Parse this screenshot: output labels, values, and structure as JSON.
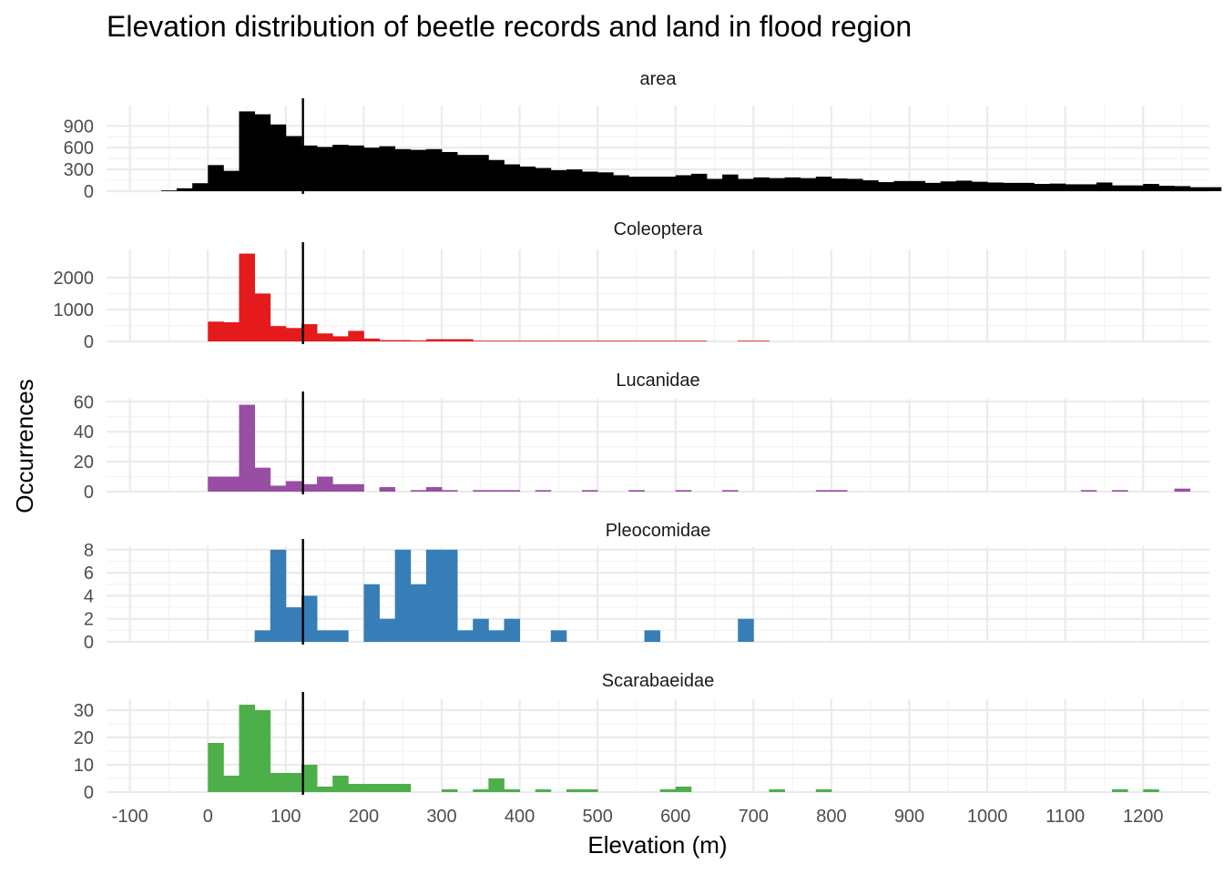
{
  "chart_data": {
    "type": "bar",
    "title": "Elevation distribution of beetle records and land in flood region",
    "xlabel": "Elevation (m)",
    "ylabel": "Occurrences",
    "xlim": [
      -130,
      1285
    ],
    "x_ticks": [
      -100,
      0,
      100,
      200,
      300,
      400,
      500,
      600,
      700,
      800,
      900,
      1000,
      1100,
      1200
    ],
    "x_tick_labels": [
      "-100",
      "0",
      "100",
      "200",
      "300",
      "400",
      "500",
      "600",
      "700",
      "800",
      "900",
      "1000",
      "1100",
      "1200"
    ],
    "bin_width": 20,
    "vline_x": 122,
    "vline_color": "#000000",
    "grid": true,
    "panels": [
      {
        "name": "area",
        "color": "#000000",
        "ylim": [
          0,
          1180
        ],
        "y_ticks": [
          0,
          300,
          600,
          900
        ],
        "y_tick_labels": [
          "0",
          "300",
          "600",
          "900"
        ],
        "bins": [
          [
            -60,
            10
          ],
          [
            -40,
            40
          ],
          [
            -20,
            110
          ],
          [
            0,
            360
          ],
          [
            20,
            280
          ],
          [
            40,
            1100
          ],
          [
            60,
            1060
          ],
          [
            80,
            920
          ],
          [
            100,
            760
          ],
          [
            120,
            630
          ],
          [
            140,
            610
          ],
          [
            160,
            640
          ],
          [
            180,
            630
          ],
          [
            200,
            600
          ],
          [
            220,
            620
          ],
          [
            240,
            580
          ],
          [
            260,
            570
          ],
          [
            280,
            580
          ],
          [
            300,
            540
          ],
          [
            320,
            500
          ],
          [
            340,
            500
          ],
          [
            360,
            430
          ],
          [
            380,
            370
          ],
          [
            400,
            340
          ],
          [
            420,
            320
          ],
          [
            440,
            290
          ],
          [
            460,
            300
          ],
          [
            480,
            270
          ],
          [
            500,
            260
          ],
          [
            520,
            220
          ],
          [
            540,
            200
          ],
          [
            560,
            200
          ],
          [
            580,
            200
          ],
          [
            600,
            220
          ],
          [
            620,
            240
          ],
          [
            640,
            170
          ],
          [
            660,
            230
          ],
          [
            680,
            170
          ],
          [
            700,
            190
          ],
          [
            720,
            180
          ],
          [
            740,
            190
          ],
          [
            760,
            180
          ],
          [
            780,
            200
          ],
          [
            800,
            175
          ],
          [
            820,
            170
          ],
          [
            840,
            150
          ],
          [
            860,
            125
          ],
          [
            880,
            140
          ],
          [
            900,
            140
          ],
          [
            920,
            115
          ],
          [
            940,
            135
          ],
          [
            960,
            145
          ],
          [
            980,
            130
          ],
          [
            1000,
            120
          ],
          [
            1020,
            115
          ],
          [
            1040,
            115
          ],
          [
            1060,
            100
          ],
          [
            1080,
            105
          ],
          [
            1100,
            95
          ],
          [
            1120,
            95
          ],
          [
            1140,
            120
          ],
          [
            1160,
            80
          ],
          [
            1180,
            80
          ],
          [
            1200,
            100
          ],
          [
            1220,
            75
          ],
          [
            1240,
            70
          ],
          [
            1260,
            55
          ],
          [
            1280,
            55
          ]
        ]
      },
      {
        "name": "Coleoptera",
        "color": "#E41A1C",
        "ylim": [
          0,
          2880
        ],
        "y_ticks": [
          0,
          1000,
          2000
        ],
        "y_tick_labels": [
          "0",
          "1000",
          "2000"
        ],
        "bins": [
          [
            0,
            620
          ],
          [
            20,
            600
          ],
          [
            40,
            2750
          ],
          [
            60,
            1500
          ],
          [
            80,
            480
          ],
          [
            100,
            420
          ],
          [
            120,
            540
          ],
          [
            140,
            250
          ],
          [
            160,
            160
          ],
          [
            180,
            330
          ],
          [
            200,
            90
          ],
          [
            220,
            40
          ],
          [
            240,
            40
          ],
          [
            260,
            30
          ],
          [
            280,
            70
          ],
          [
            300,
            70
          ],
          [
            320,
            70
          ],
          [
            340,
            20
          ],
          [
            360,
            15
          ],
          [
            380,
            15
          ],
          [
            400,
            15
          ],
          [
            420,
            15
          ],
          [
            440,
            15
          ],
          [
            460,
            15
          ],
          [
            480,
            15
          ],
          [
            500,
            15
          ],
          [
            520,
            15
          ],
          [
            540,
            15
          ],
          [
            560,
            15
          ],
          [
            580,
            15
          ],
          [
            600,
            15
          ],
          [
            620,
            5
          ],
          [
            680,
            15
          ],
          [
            700,
            15
          ]
        ]
      },
      {
        "name": "Lucanidae",
        "color": "#984EA3",
        "ylim": [
          0,
          62
        ],
        "y_ticks": [
          0,
          20,
          40,
          60
        ],
        "y_tick_labels": [
          "0",
          "20",
          "40",
          "60"
        ],
        "bins": [
          [
            0,
            10
          ],
          [
            20,
            10
          ],
          [
            40,
            58
          ],
          [
            60,
            16
          ],
          [
            80,
            4
          ],
          [
            100,
            7
          ],
          [
            120,
            5
          ],
          [
            140,
            10
          ],
          [
            160,
            5
          ],
          [
            180,
            5
          ],
          [
            220,
            3
          ],
          [
            260,
            1
          ],
          [
            280,
            3
          ],
          [
            300,
            1
          ],
          [
            340,
            1
          ],
          [
            360,
            1
          ],
          [
            380,
            1
          ],
          [
            420,
            1
          ],
          [
            480,
            1
          ],
          [
            540,
            1
          ],
          [
            600,
            1
          ],
          [
            660,
            1
          ],
          [
            780,
            1
          ],
          [
            800,
            1
          ],
          [
            1120,
            1
          ],
          [
            1160,
            1
          ],
          [
            1240,
            2
          ]
        ]
      },
      {
        "name": "Pleocomidae",
        "color": "#377EB8",
        "ylim": [
          0,
          8.3
        ],
        "y_ticks": [
          0,
          2,
          4,
          6,
          8
        ],
        "y_tick_labels": [
          "0",
          "2",
          "4",
          "6",
          "8"
        ],
        "bins": [
          [
            60,
            1
          ],
          [
            80,
            8
          ],
          [
            100,
            3
          ],
          [
            120,
            4
          ],
          [
            140,
            1
          ],
          [
            160,
            1
          ],
          [
            200,
            5
          ],
          [
            220,
            2
          ],
          [
            240,
            8
          ],
          [
            260,
            5
          ],
          [
            280,
            8
          ],
          [
            300,
            8
          ],
          [
            320,
            1
          ],
          [
            340,
            2
          ],
          [
            360,
            1
          ],
          [
            380,
            2
          ],
          [
            440,
            1
          ],
          [
            560,
            1
          ],
          [
            680,
            2
          ]
        ]
      },
      {
        "name": "Scarabaeidae",
        "color": "#4DAF4A",
        "ylim": [
          0,
          34
        ],
        "y_ticks": [
          0,
          10,
          20,
          30
        ],
        "y_tick_labels": [
          "0",
          "10",
          "20",
          "30"
        ],
        "bins": [
          [
            0,
            18
          ],
          [
            20,
            6
          ],
          [
            40,
            32
          ],
          [
            60,
            30
          ],
          [
            80,
            7
          ],
          [
            100,
            7
          ],
          [
            120,
            10
          ],
          [
            140,
            2
          ],
          [
            160,
            6
          ],
          [
            180,
            3
          ],
          [
            200,
            3
          ],
          [
            220,
            3
          ],
          [
            240,
            3
          ],
          [
            300,
            1
          ],
          [
            340,
            1
          ],
          [
            360,
            5
          ],
          [
            380,
            1
          ],
          [
            420,
            1
          ],
          [
            460,
            1
          ],
          [
            480,
            1
          ],
          [
            580,
            1
          ],
          [
            600,
            2
          ],
          [
            720,
            1
          ],
          [
            780,
            1
          ],
          [
            1160,
            1
          ],
          [
            1200,
            1
          ]
        ]
      }
    ]
  }
}
